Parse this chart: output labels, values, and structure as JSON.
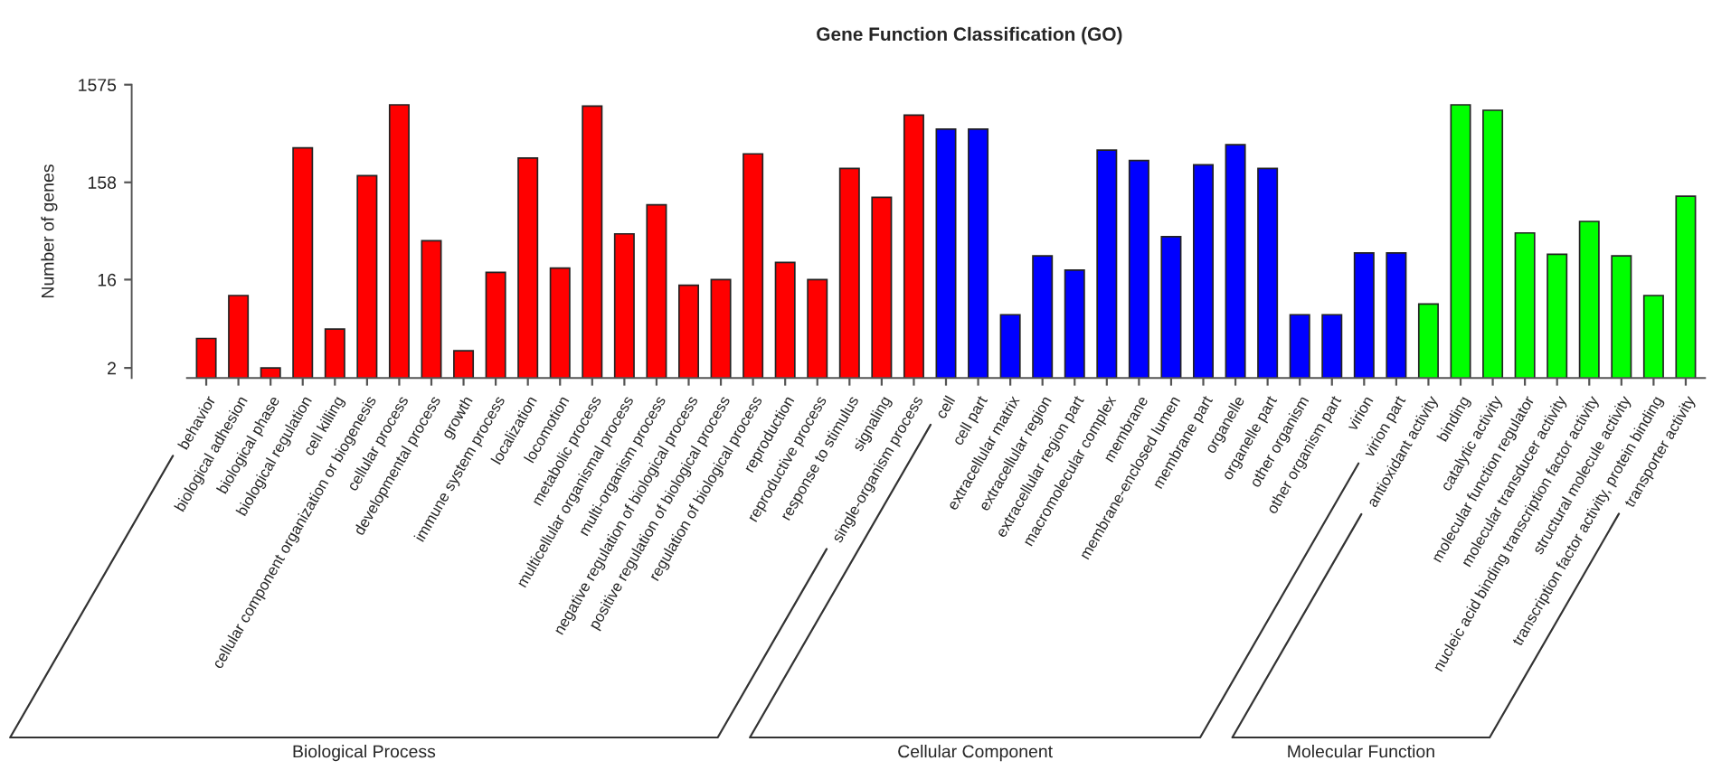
{
  "chart_data": {
    "type": "bar",
    "title": "Gene Function Classification (GO)",
    "ylabel": "Number of genes",
    "categories": [
      "behavior",
      "biological adhesion",
      "biological phase",
      "biological regulation",
      "cell killing",
      "cellular component organization or biogenesis",
      "cellular process",
      "developmental process",
      "growth",
      "immune system process",
      "localization",
      "locomotion",
      "metabolic process",
      "multicellular organismal process",
      "multi-organism process",
      "negative regulation of biological process",
      "positive regulation of biological process",
      "regulation of biological process",
      "reproduction",
      "reproductive process",
      "response to stimulus",
      "signaling",
      "single-organism process",
      "cell",
      "cell part",
      "extracellular matrix",
      "extracellular region",
      "extracellular region part",
      "macromolecular complex",
      "membrane",
      "membrane-enclosed lumen",
      "membrane part",
      "organelle",
      "organelle part",
      "other organism",
      "other organism part",
      "virion",
      "virion part",
      "antioxidant activity",
      "binding",
      "catalytic activity",
      "molecular function regulator",
      "molecular transducer activity",
      "nucleic acid binding transcription factor activity",
      "structural molecule activity",
      "transcription factor activity, protein binding",
      "transporter activity"
    ],
    "values": [
      4,
      11,
      2,
      356,
      5,
      185,
      981,
      40,
      3,
      19,
      280,
      21,
      953,
      47,
      93,
      14,
      16,
      309,
      24,
      16,
      219,
      111,
      770,
      554,
      554,
      7,
      28,
      20,
      337,
      264,
      44,
      239,
      383,
      219,
      7,
      7,
      30,
      30,
      9,
      981,
      863,
      48,
      29,
      63,
      28,
      11,
      114
    ],
    "colors": [
      "#ff0000",
      "#ff0000",
      "#ff0000",
      "#ff0000",
      "#ff0000",
      "#ff0000",
      "#ff0000",
      "#ff0000",
      "#ff0000",
      "#ff0000",
      "#ff0000",
      "#ff0000",
      "#ff0000",
      "#ff0000",
      "#ff0000",
      "#ff0000",
      "#ff0000",
      "#ff0000",
      "#ff0000",
      "#ff0000",
      "#ff0000",
      "#ff0000",
      "#ff0000",
      "#0000ff",
      "#0000ff",
      "#0000ff",
      "#0000ff",
      "#0000ff",
      "#0000ff",
      "#0000ff",
      "#0000ff",
      "#0000ff",
      "#0000ff",
      "#0000ff",
      "#0000ff",
      "#0000ff",
      "#0000ff",
      "#0000ff",
      "#00ff00",
      "#00ff00",
      "#00ff00",
      "#00ff00",
      "#00ff00",
      "#00ff00",
      "#00ff00",
      "#00ff00",
      "#00ff00"
    ],
    "log": true,
    "ylim": [
      1.575,
      1575
    ],
    "yticks": [
      2,
      16,
      158,
      1575
    ],
    "annotations": [
      "Biological Process",
      "Cellular Component",
      "Molecular Function"
    ]
  }
}
